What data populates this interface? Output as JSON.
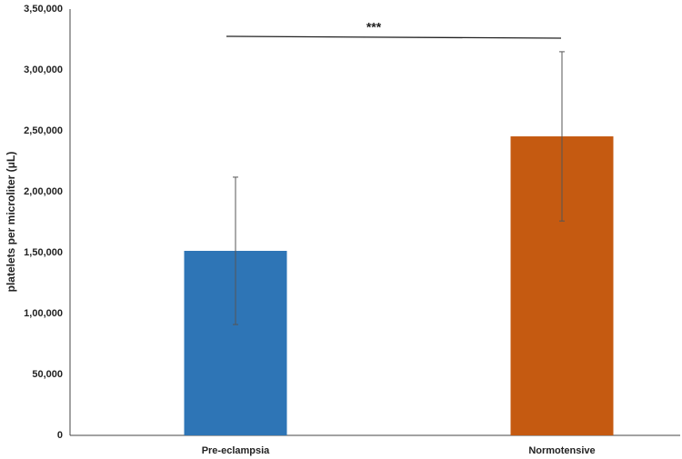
{
  "chart_data": {
    "type": "bar",
    "y_label": "platelets per microliter (μL)",
    "categories": [
      "Pre-eclampsia",
      "Normotensive"
    ],
    "values": [
      151500,
      245500
    ],
    "errors": [
      60500,
      69500
    ],
    "colors": [
      "#2e75b6",
      "#c55a11"
    ],
    "annotation": "***",
    "ylim": [
      0,
      350000
    ],
    "yticks": [
      0,
      {
        "value": 50000,
        "label": "50,000"
      },
      {
        "value": 100000,
        "label": "1,00,000"
      },
      {
        "value": 150000,
        "label": "1,50,000"
      },
      {
        "value": 200000,
        "label": "2,00,000"
      },
      {
        "value": 250000,
        "label": "2,50,000"
      },
      {
        "value": 300000,
        "label": "3,00,000"
      },
      {
        "value": 350000,
        "label": "3,50,000"
      }
    ],
    "grid": false
  }
}
